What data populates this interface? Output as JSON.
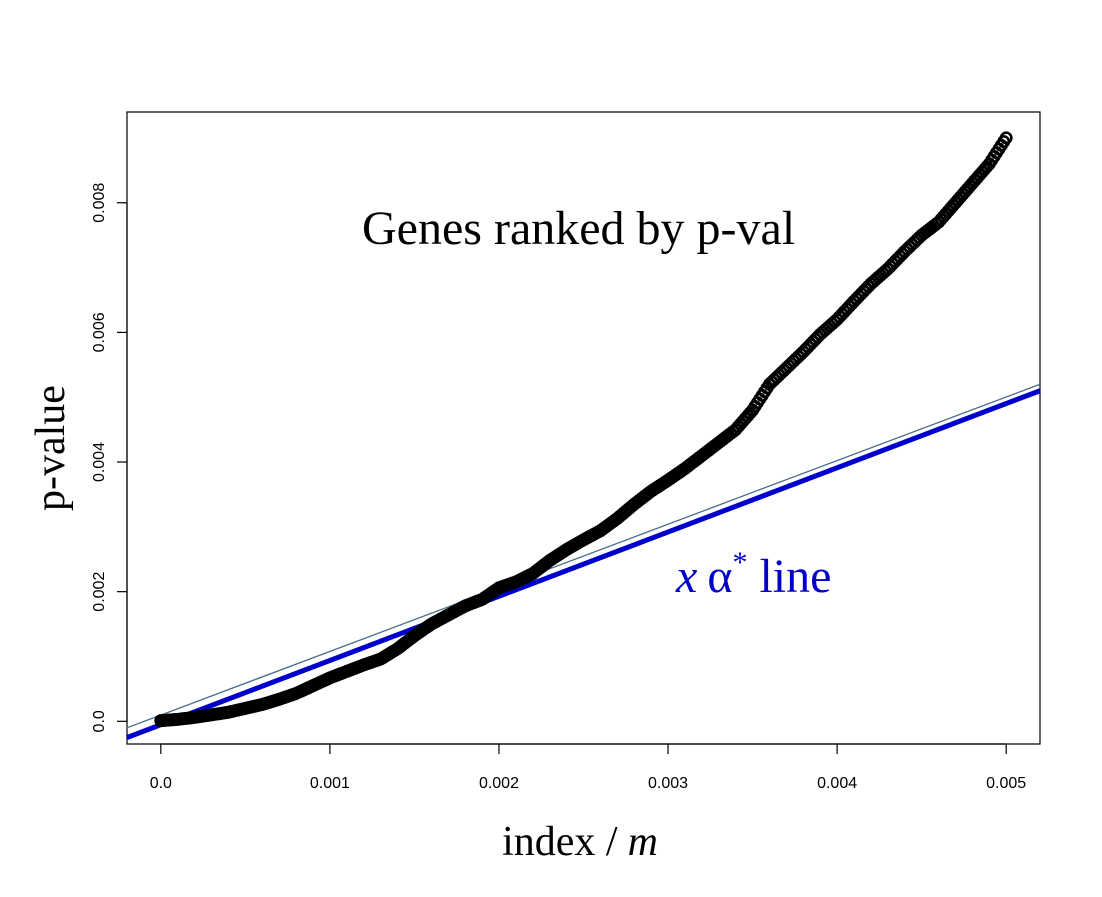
{
  "chart_data": {
    "type": "scatter",
    "xlabel": "index /",
    "xlabel_italic": "m",
    "ylabel": "p-value",
    "xlim": [
      -0.0002,
      0.0052
    ],
    "ylim": [
      -0.00035,
      0.0094
    ],
    "xticks": [
      0,
      0.001,
      0.002,
      0.003,
      0.004,
      0.005
    ],
    "xtick_labels": [
      "0.0",
      "0.001",
      "0.002",
      "0.003",
      "0.004",
      "0.005"
    ],
    "yticks": [
      0,
      0.002,
      0.004,
      0.006,
      0.008
    ],
    "ytick_labels": [
      "0.0",
      "0.002",
      "0.004",
      "0.006",
      "0.008"
    ],
    "grid": false,
    "annotations": {
      "ranked": "Genes ranked by p-val",
      "line_x": "x",
      "line_alpha": "α",
      "line_star": "*",
      "line_word": "line"
    },
    "colors": {
      "points": "#000000",
      "thick_line": "#0000cc",
      "thin_line": "#4a6d8c",
      "annot_line": "#0000cc"
    },
    "series": [
      {
        "kind": "points",
        "x": [
          0,
          0.0001,
          0.0002,
          0.0003,
          0.0004,
          0.0005,
          0.0006,
          0.0007,
          0.0008,
          0.0009,
          0.001,
          0.0011,
          0.0012,
          0.0013,
          0.0014,
          0.0015,
          0.0016,
          0.0017,
          0.0018,
          0.0019,
          0.002,
          0.0021,
          0.0022,
          0.0023,
          0.0024,
          0.0025,
          0.0026,
          0.0027,
          0.0028,
          0.0029,
          0.003,
          0.0031,
          0.0032,
          0.0033,
          0.0034,
          0.0035,
          0.0036,
          0.0037,
          0.0038,
          0.0039,
          0.004,
          0.0041,
          0.0042,
          0.0043,
          0.0044,
          0.0045,
          0.0046,
          0.0047,
          0.0048,
          0.0049,
          0.005
        ],
        "y": [
          1e-05,
          3e-05,
          6e-05,
          0.0001,
          0.00014,
          0.0002,
          0.00026,
          0.00034,
          0.00043,
          0.00055,
          0.00067,
          0.00077,
          0.00087,
          0.00096,
          0.00112,
          0.00132,
          0.0015,
          0.00164,
          0.00178,
          0.00188,
          0.00206,
          0.00215,
          0.00228,
          0.00248,
          0.00265,
          0.0028,
          0.00294,
          0.00313,
          0.00335,
          0.00355,
          0.00372,
          0.0039,
          0.0041,
          0.0043,
          0.0045,
          0.0048,
          0.0052,
          0.00545,
          0.0057,
          0.00597,
          0.0062,
          0.00648,
          0.00675,
          0.00698,
          0.00725,
          0.0075,
          0.0077,
          0.008,
          0.0083,
          0.0086,
          0.009
        ]
      },
      {
        "kind": "line",
        "style": "thick",
        "x": [
          -0.0002,
          0.0052
        ],
        "y": [
          -0.00025,
          0.0051
        ]
      },
      {
        "kind": "line",
        "style": "thin",
        "x": [
          -0.0002,
          0.0052
        ],
        "y": [
          -0.0001,
          0.0052
        ]
      }
    ]
  }
}
